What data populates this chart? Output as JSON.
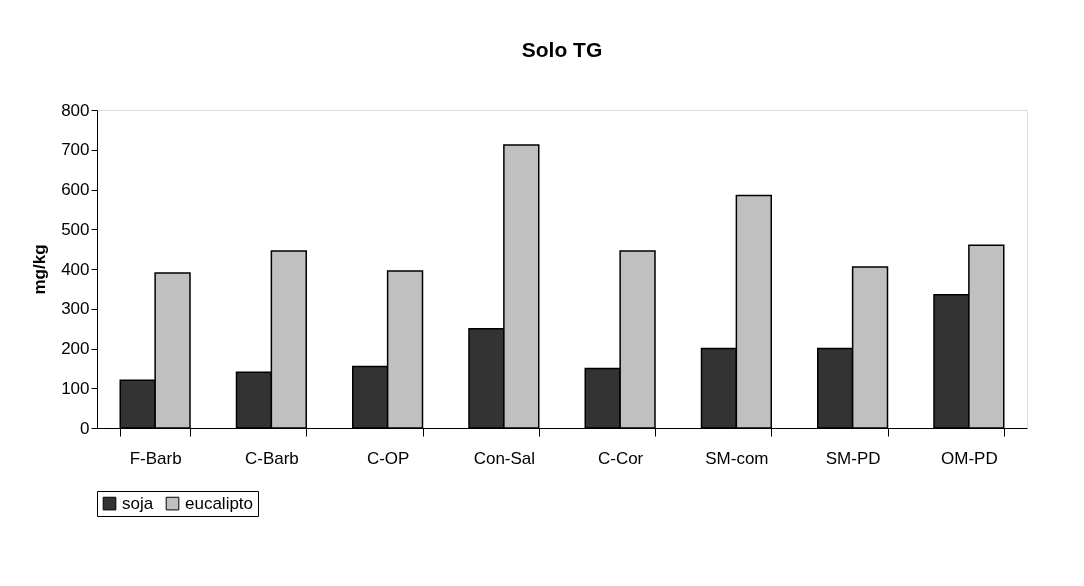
{
  "chart_data": {
    "type": "bar",
    "title": "Solo TG",
    "ylabel": "mg/kg",
    "categories": [
      "F-Barb",
      "C-Barb",
      "C-OP",
      "Con-Sal",
      "C-Cor",
      "SM-com",
      "SM-PD",
      "OM-PD"
    ],
    "series": [
      {
        "name": "soja",
        "color": "#333333",
        "values": [
          120,
          140,
          155,
          250,
          150,
          200,
          200,
          335
        ]
      },
      {
        "name": "eucalipto",
        "color": "#c0c0c0",
        "values": [
          390,
          445,
          395,
          712,
          445,
          585,
          405,
          460
        ]
      }
    ],
    "ylim": [
      0,
      800
    ],
    "yticks": [
      0,
      100,
      200,
      300,
      400,
      500,
      600,
      700,
      800
    ],
    "grid": false,
    "legend": "bottom"
  }
}
